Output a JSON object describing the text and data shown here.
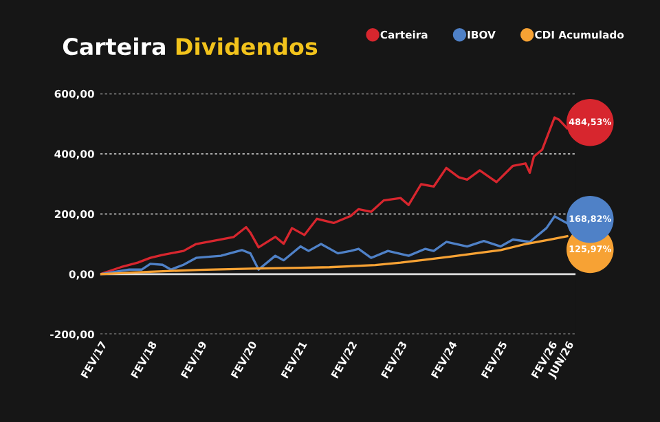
{
  "chart_data": {
    "type": "line",
    "title": "Carteira Dividendos",
    "x": [
      "2017-02",
      "2017-07",
      "2017-11",
      "2018-02",
      "2018-05",
      "2018-10",
      "2019-01",
      "2019-07",
      "2019-10",
      "2020-01",
      "2020-02",
      "2020-04",
      "2020-08",
      "2020-10",
      "2020-12",
      "2021-03",
      "2021-06",
      "2021-10",
      "2022-02",
      "2022-04",
      "2022-07",
      "2022-10",
      "2023-02",
      "2023-04",
      "2023-07",
      "2023-10",
      "2024-01",
      "2024-04",
      "2024-06",
      "2024-09",
      "2025-01",
      "2025-05",
      "2025-08",
      "2025-09",
      "2025-10",
      "2025-12",
      "2026-03",
      "2026-04",
      "2026-06"
    ],
    "series": [
      {
        "name": "Carteira",
        "color": "#d7262e",
        "values": [
          0,
          23,
          38,
          54,
          64,
          77,
          100,
          115,
          123,
          156,
          138,
          89,
          124,
          101,
          153,
          130,
          184,
          170,
          193,
          216,
          207,
          245,
          253,
          230,
          299,
          291,
          353,
          322,
          314,
          345,
          306,
          360,
          368,
          337,
          391,
          414,
          521,
          514,
          485
        ]
      },
      {
        "name": "IBOV",
        "color": "#4f81c7",
        "x": [
          "2017-02",
          "2017-09",
          "2017-12",
          "2018-02",
          "2018-05",
          "2018-07",
          "2018-10",
          "2019-01",
          "2019-07",
          "2019-12",
          "2020-02",
          "2020-04",
          "2020-08",
          "2020-10",
          "2021-02",
          "2021-04",
          "2021-07",
          "2021-11",
          "2022-02",
          "2022-04",
          "2022-07",
          "2022-11",
          "2023-04",
          "2023-08",
          "2023-10",
          "2024-01",
          "2024-06",
          "2024-10",
          "2025-02",
          "2025-05",
          "2025-09",
          "2026-01",
          "2026-03",
          "2026-06"
        ],
        "values": [
          0,
          15,
          15,
          34,
          31,
          15,
          31,
          54,
          61,
          80,
          69,
          15,
          61,
          46,
          92,
          77,
          100,
          69,
          77,
          84,
          54,
          77,
          61,
          84,
          77,
          107,
          92,
          110,
          92,
          115,
          107,
          153,
          192,
          169
        ]
      },
      {
        "name": "CDI Acumulado",
        "color": "#f7a234",
        "x": [
          "2017-02",
          "2018-02",
          "2019-02",
          "2020-02",
          "2021-02",
          "2021-09",
          "2022-08",
          "2023-02",
          "2023-08",
          "2024-02",
          "2024-08",
          "2025-02",
          "2025-08",
          "2026-02",
          "2026-06"
        ],
        "values": [
          0,
          8,
          14,
          18,
          21,
          23,
          30,
          38,
          48,
          58,
          69,
          80,
          100,
          115,
          126
        ]
      }
    ],
    "annotations": [
      "484,53%",
      "168,82%",
      "125,97%"
    ],
    "xlim": [
      "2017-02",
      "2026-08"
    ],
    "xticks": [
      {
        "value": "2017-02",
        "label": "FEV/17"
      },
      {
        "value": "2018-02",
        "label": "FEV/18"
      },
      {
        "value": "2019-02",
        "label": "FEV/19"
      },
      {
        "value": "2020-02",
        "label": "FEV/20"
      },
      {
        "value": "2021-02",
        "label": "FEV/21"
      },
      {
        "value": "2022-02",
        "label": "FEV/22"
      },
      {
        "value": "2023-02",
        "label": "FEV/23"
      },
      {
        "value": "2024-02",
        "label": "FEV/24"
      },
      {
        "value": "2025-02",
        "label": "FEV/25"
      },
      {
        "value": "2026-02",
        "label": "FEV/26"
      },
      {
        "value": "2026-06",
        "label": "JUN/26"
      }
    ],
    "ylim": [
      -200,
      600
    ],
    "yticks": [
      {
        "value": -200,
        "label": "-200,00"
      },
      {
        "value": 0,
        "label": "0,00"
      },
      {
        "value": 200,
        "label": "200,00"
      },
      {
        "value": 400,
        "label": "400,00"
      },
      {
        "value": 600,
        "label": "600,00"
      }
    ],
    "ref_lines": [
      {
        "axis": "y",
        "value": 0,
        "color": "#e0e0e0",
        "line_style": "solid"
      }
    ],
    "grid": "y",
    "legend": "top right",
    "marker": "none",
    "line_style": "solid"
  }
}
